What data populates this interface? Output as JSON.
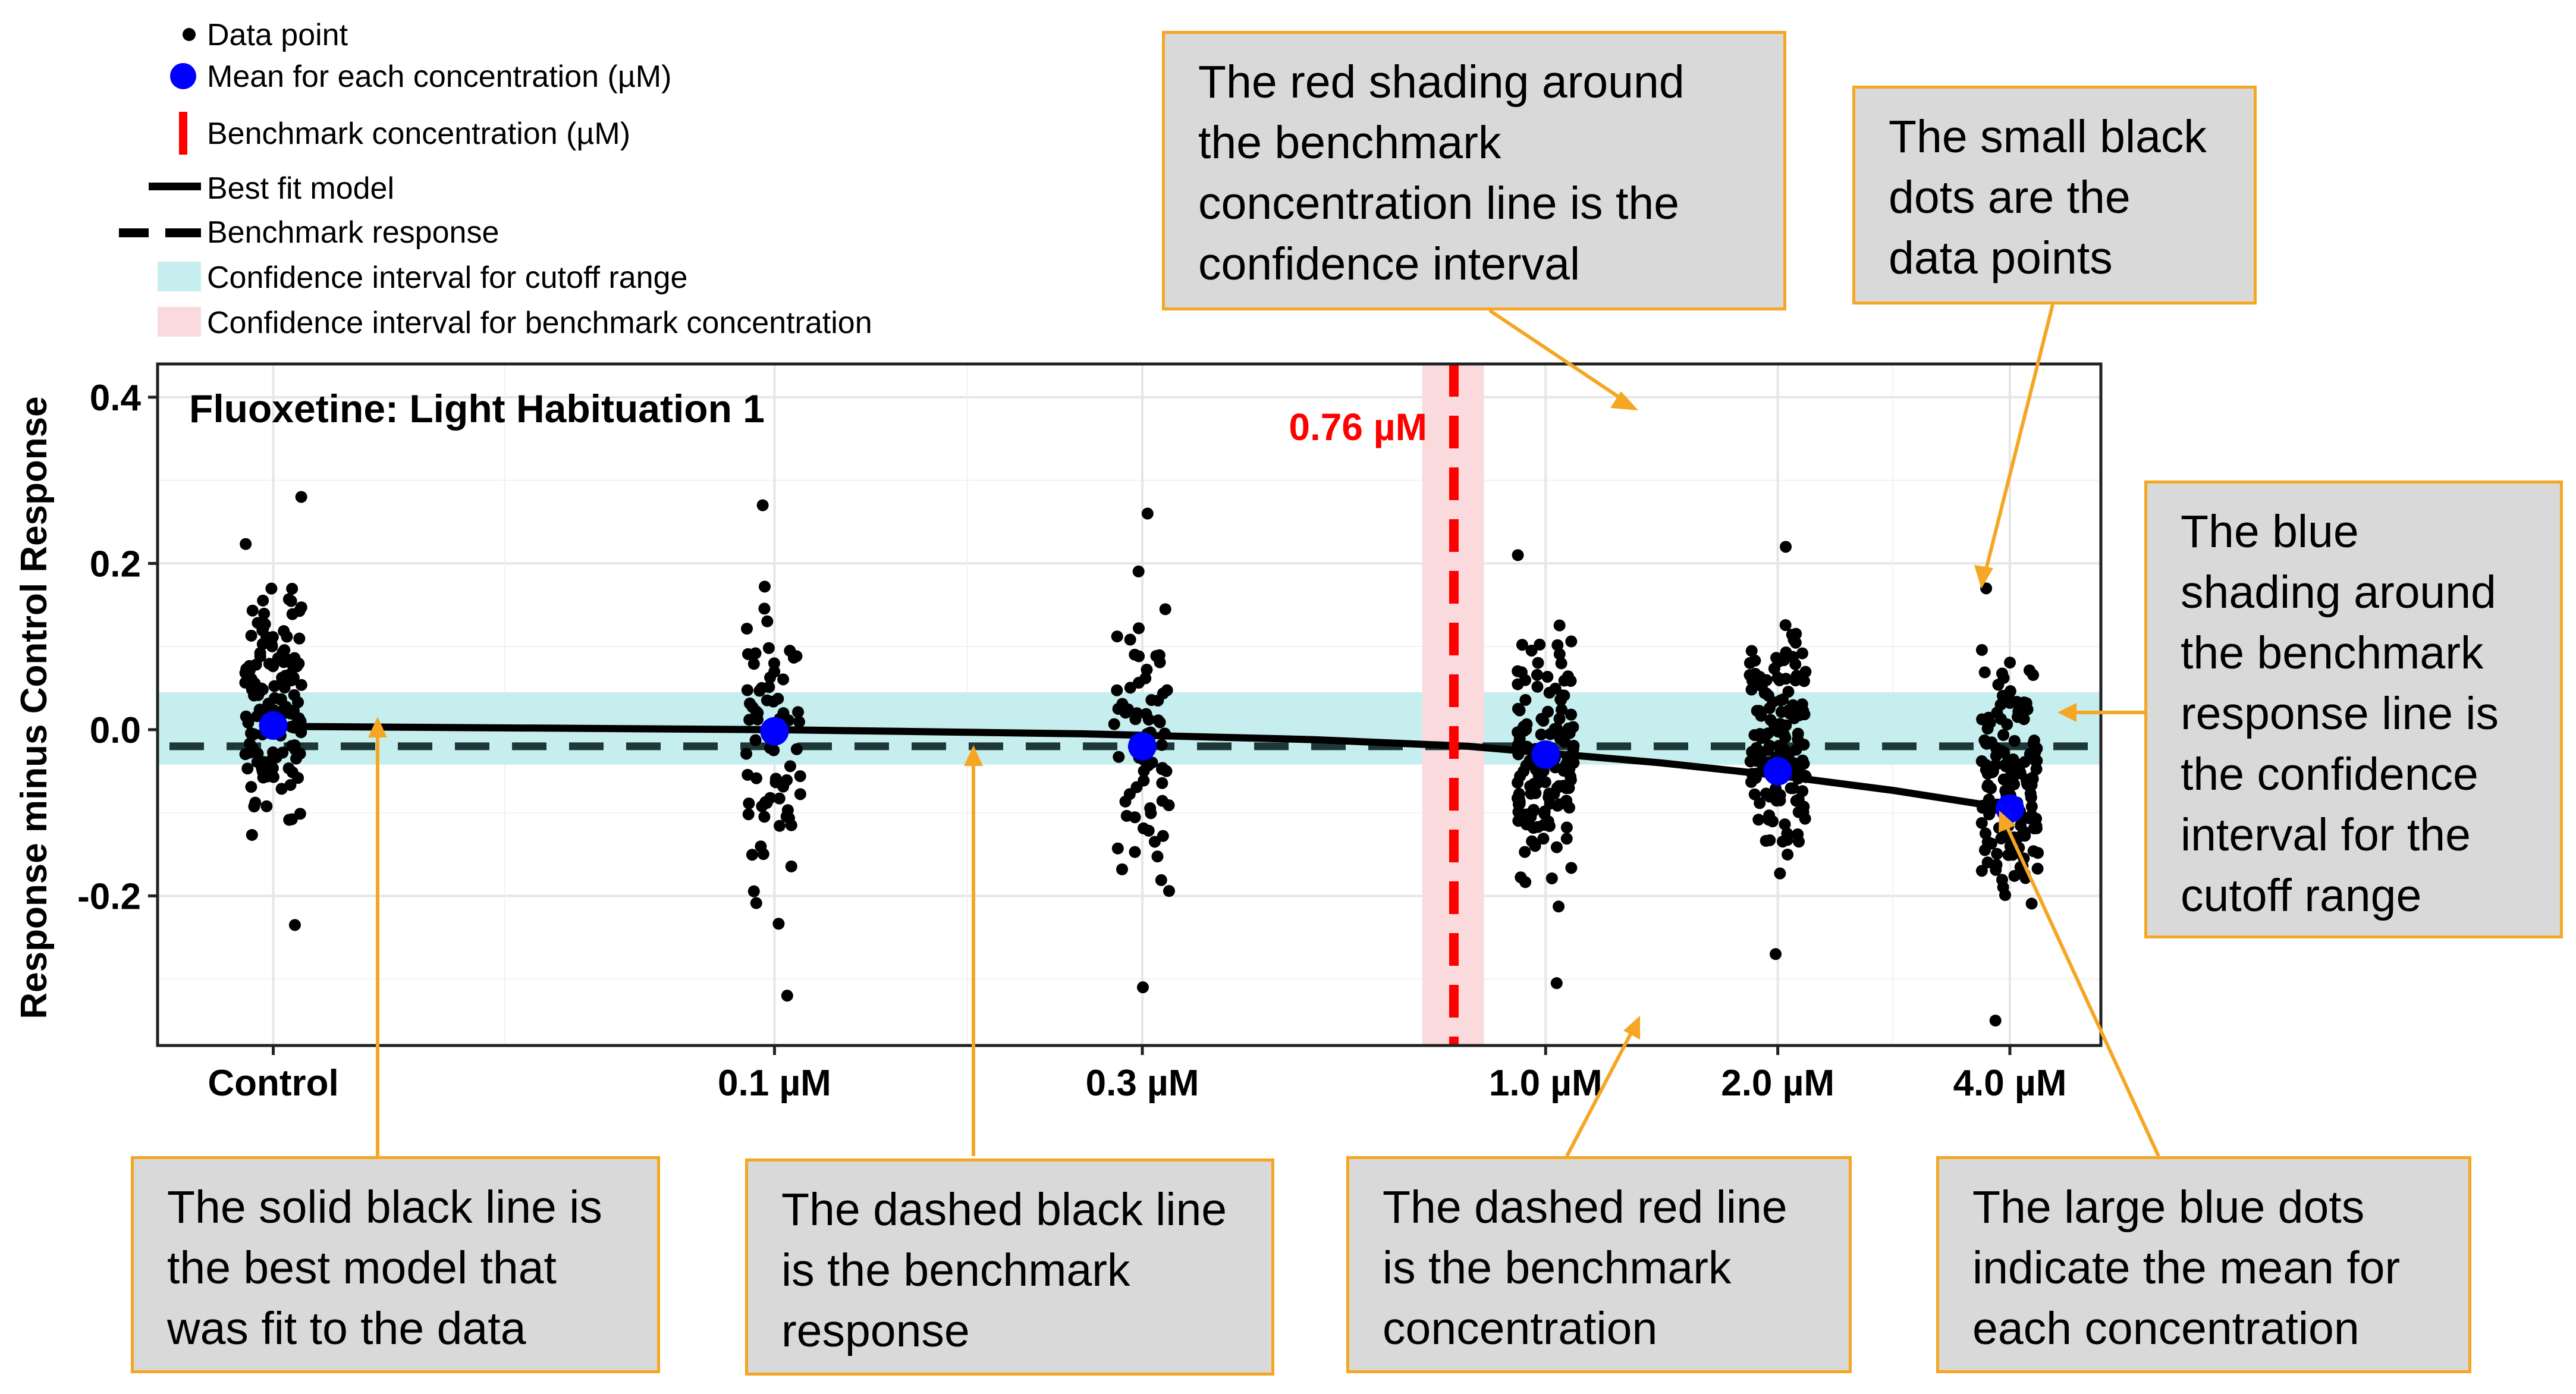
{
  "legend": {
    "data_point": "Data point",
    "mean": "Mean for each concentration (µM)",
    "benchmark_concentration": "Benchmark concentration (µM)",
    "best_fit": "Best fit model",
    "benchmark_response": "Benchmark response",
    "ci_cutoff": "Confidence interval for cutoff range",
    "ci_benchmark": "Confidence interval for benchmark concentration"
  },
  "colors": {
    "cutoff_band": "#c6eeee",
    "benchmark_band": "#fadadd",
    "benchmark_line": "#ff0000",
    "mean_dot": "#0000ff",
    "callout_border": "#f5a623",
    "callout_fill": "#d9d9d9"
  },
  "chart_data": {
    "type": "scatter",
    "title": "Fluoxetine: Light Habituation 1",
    "ylabel": "Response minus Control Response",
    "xlabel": "",
    "ylim": [
      -0.38,
      0.44
    ],
    "yticks": [
      -0.2,
      0.0,
      0.2,
      0.4
    ],
    "ytick_labels": [
      "-0.2",
      "0.0",
      "0.2",
      "0.4"
    ],
    "log_x_range": [
      -1.8,
      0.72
    ],
    "categories": [
      {
        "label": "Control",
        "log_conc": -1.65,
        "mean": 0.005,
        "min": -0.235,
        "max": 0.28
      },
      {
        "label": "0.1 µM",
        "log_conc": -1.0,
        "mean": -0.002,
        "min": -0.32,
        "max": 0.27
      },
      {
        "label": "0.3 µM",
        "log_conc": -0.523,
        "mean": -0.02,
        "min": -0.31,
        "max": 0.26
      },
      {
        "label": "1.0 µM",
        "log_conc": 0.0,
        "mean": -0.03,
        "min": -0.305,
        "max": 0.21
      },
      {
        "label": "2.0 µM",
        "log_conc": 0.301,
        "mean": -0.05,
        "min": -0.27,
        "max": 0.22
      },
      {
        "label": "4.0 µM",
        "log_conc": 0.602,
        "mean": -0.095,
        "min": -0.35,
        "max": 0.17
      }
    ],
    "best_fit_curve": [
      {
        "log_conc": -1.65,
        "y": 0.004
      },
      {
        "log_conc": -1.0,
        "y": 0.0
      },
      {
        "log_conc": -0.6,
        "y": -0.005
      },
      {
        "log_conc": -0.3,
        "y": -0.012
      },
      {
        "log_conc": -0.1,
        "y": -0.02
      },
      {
        "log_conc": 0.0,
        "y": -0.028
      },
      {
        "log_conc": 0.15,
        "y": -0.04
      },
      {
        "log_conc": 0.3,
        "y": -0.055
      },
      {
        "log_conc": 0.45,
        "y": -0.073
      },
      {
        "log_conc": 0.602,
        "y": -0.095
      }
    ],
    "benchmark_response": -0.02,
    "cutoff_ci": [
      -0.042,
      0.045
    ],
    "benchmark_concentration": {
      "value_uM": 0.76,
      "log_conc": -0.119,
      "ci_log": [
        -0.16,
        -0.08
      ],
      "label": "0.76 µM"
    }
  },
  "callouts": {
    "red_shading": "The red shading around the benchmark concentration line is the confidence interval",
    "small_dots": "The small black dots are the data points",
    "blue_shading": "The blue shading around the benchmark response line is the confidence interval for the cutoff range",
    "solid_line": "The solid black line is the best model that was fit to the data",
    "dashed_black": "The dashed black line is the benchmark response",
    "dashed_red": "The dashed red line is the benchmark concentration",
    "blue_dots": "The large blue dots indicate the mean for each concentration"
  }
}
